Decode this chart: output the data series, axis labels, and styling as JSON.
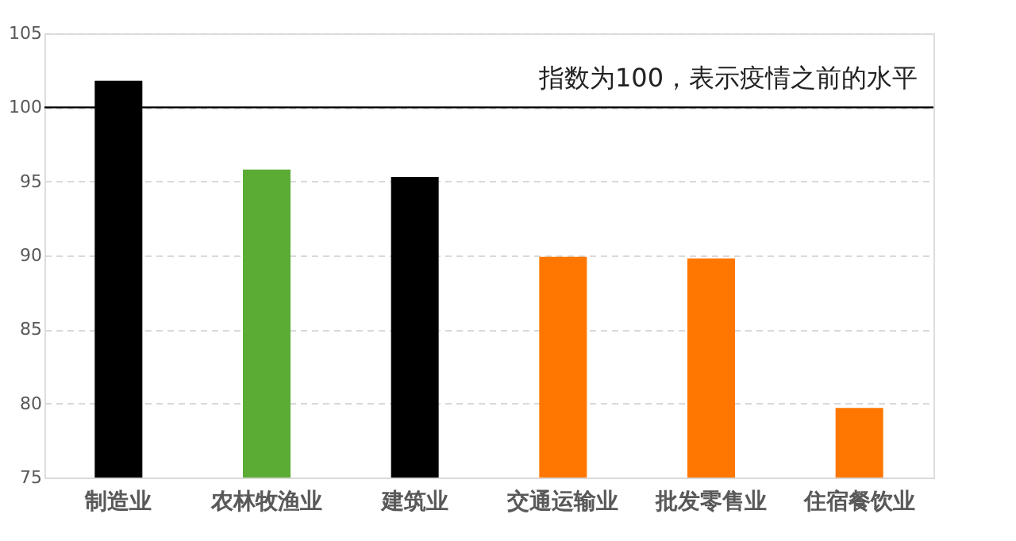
{
  "chart_data": {
    "type": "bar",
    "categories": [
      "制造业",
      "农林牧渔业",
      "建筑业",
      "交通运输业",
      "批发零售业",
      "住宿餐饮业"
    ],
    "values": [
      101.8,
      95.8,
      95.3,
      89.9,
      89.8,
      79.7
    ],
    "colors": [
      "#000000",
      "#5aac35",
      "#000000",
      "#ff7700",
      "#ff7700",
      "#ff7700"
    ],
    "ylim": [
      75,
      105
    ],
    "yticks": [
      75,
      80,
      85,
      90,
      95,
      100,
      105
    ],
    "grid": "y",
    "ref_lines": [
      {
        "axis": "y",
        "value": 100,
        "label": "指数为100，表示疫情之前的水平",
        "color": "#000000"
      }
    ]
  }
}
